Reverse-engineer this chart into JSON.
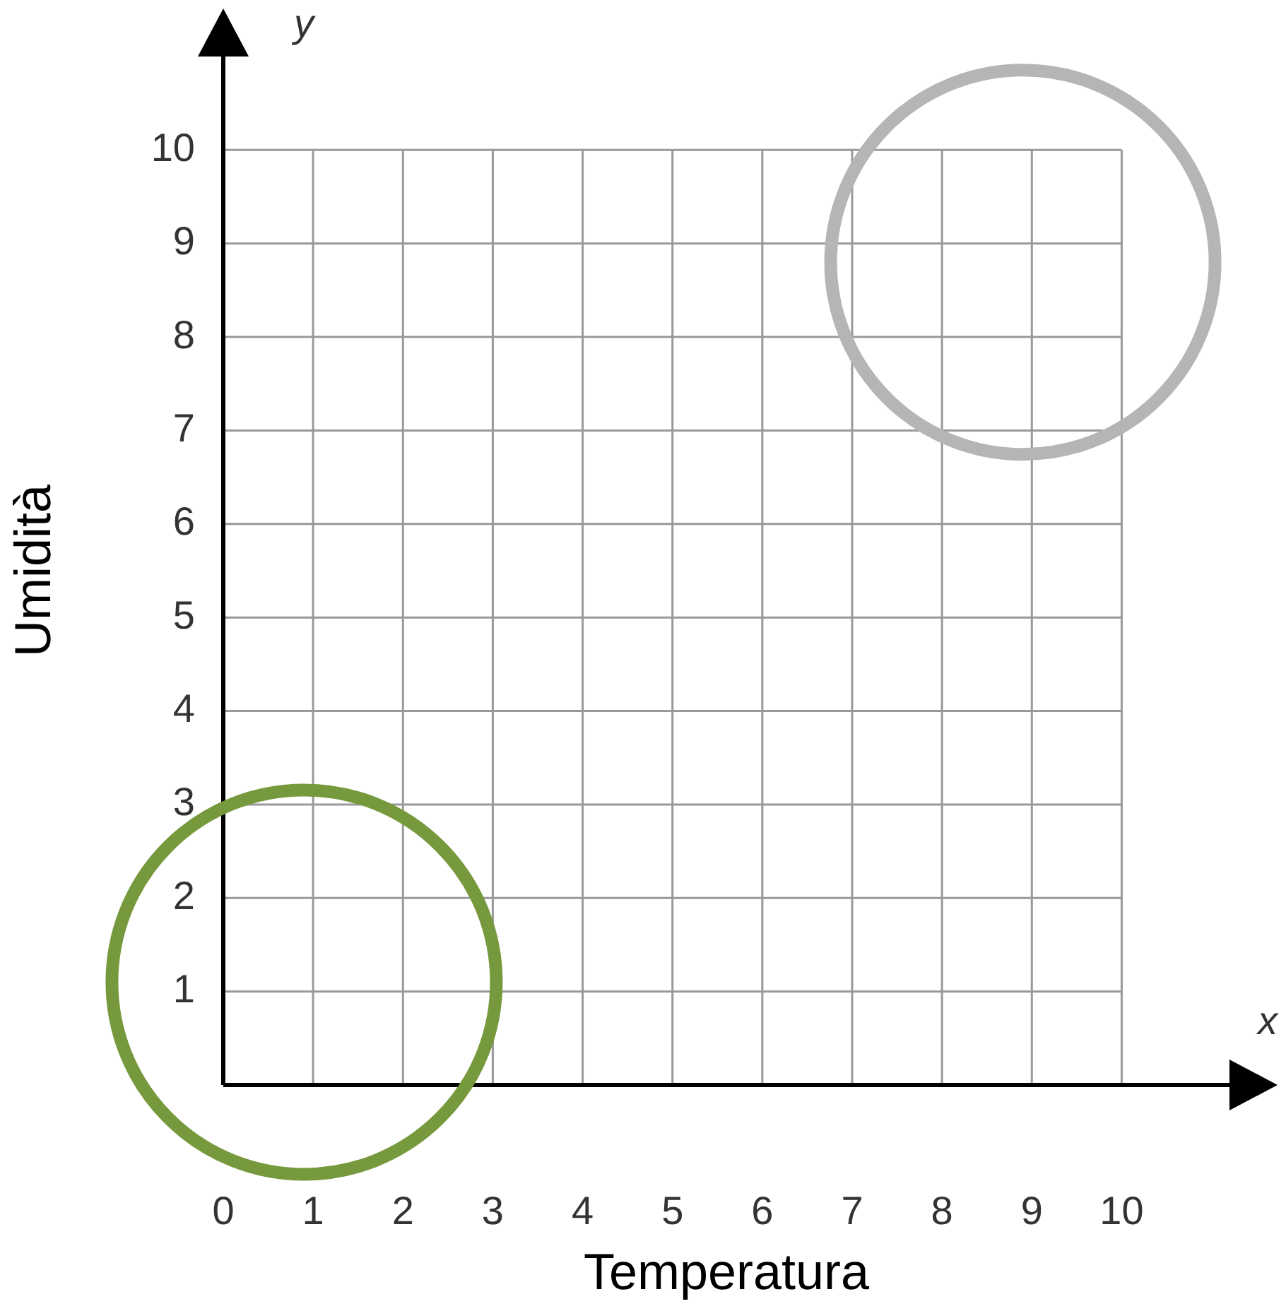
{
  "chart_data": {
    "type": "bubble",
    "xlabel": "Temperatura",
    "ylabel": "Umidità",
    "annotations": [
      "x",
      "y"
    ],
    "x": [
      0.9,
      8.9
    ],
    "values": [
      1.1,
      8.8
    ],
    "sizes": [
      1,
      1
    ],
    "colors": [
      "#77993d",
      "#b5b5b5"
    ],
    "xlim": [
      0,
      11.2
    ],
    "ylim": [
      0,
      11
    ],
    "xticks": [
      0,
      1,
      2,
      3,
      4,
      5,
      6,
      7,
      8,
      9,
      10
    ],
    "yticks": [
      1,
      2,
      3,
      4,
      5,
      6,
      7,
      8,
      9,
      10
    ],
    "grid": true,
    "legend": false
  }
}
